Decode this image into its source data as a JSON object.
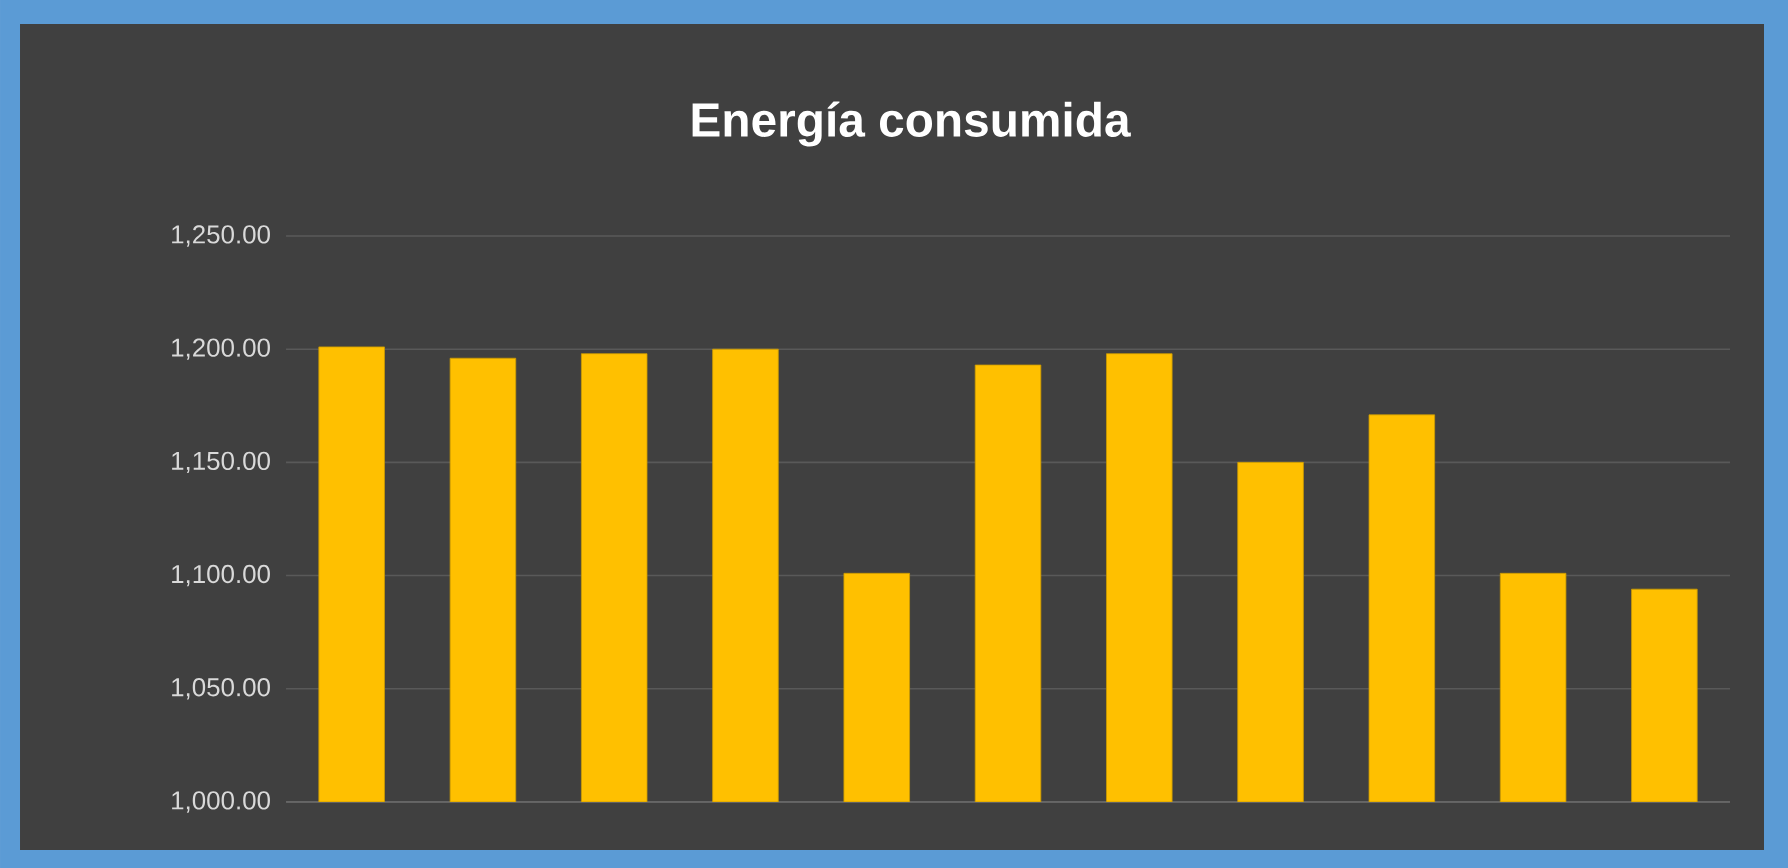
{
  "chart_data": {
    "type": "bar",
    "title": "Energía consumida",
    "categories": [
      null,
      null,
      null,
      null,
      null,
      null,
      null,
      null,
      null,
      null,
      null
    ],
    "values": [
      1201,
      1196,
      1198,
      1200,
      1101,
      1193,
      1198,
      1150,
      1171,
      1101,
      1094
    ],
    "color": "#ffc000",
    "ylim": [
      1000,
      1250
    ],
    "yticks": [
      {
        "value": 1000,
        "label": "1,000.00"
      },
      {
        "value": 1050,
        "label": "1,050.00"
      },
      {
        "value": 1100,
        "label": "1,100.00"
      },
      {
        "value": 1150,
        "label": "1,150.00"
      },
      {
        "value": 1200,
        "label": "1,200.00"
      },
      {
        "value": 1250,
        "label": "1,250.00"
      }
    ],
    "grid": "y"
  }
}
